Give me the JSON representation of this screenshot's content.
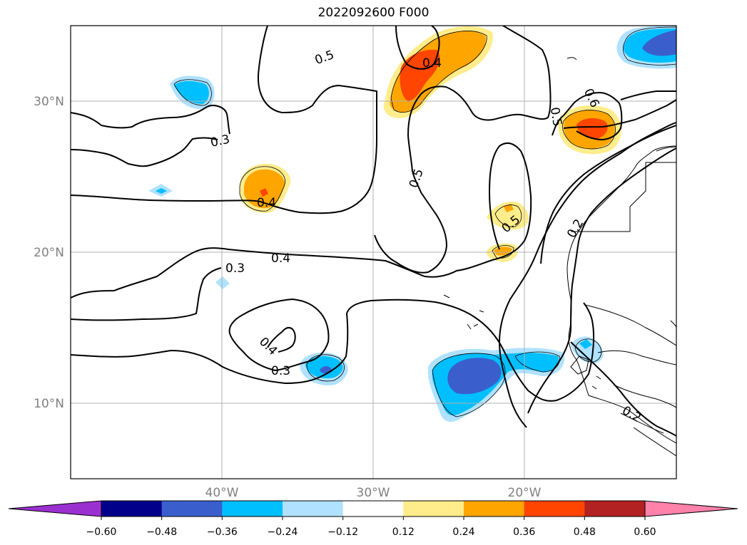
{
  "title": "2022092600 F000",
  "axes": {
    "lat_labels": [
      "30°N",
      "20°N",
      "10°N"
    ],
    "lon_labels": [
      "40°W",
      "30°W",
      "20°W"
    ]
  },
  "contour_labels": [
    "0.5",
    "0.4",
    "0.6",
    "0.5",
    "0.3",
    "0.4",
    "0.5",
    "0.5",
    "0.2",
    "0.4",
    "0.3",
    "0.4",
    "0.3",
    "0.2"
  ],
  "colorbar": {
    "tick_labels": [
      "−0.60",
      "−0.48",
      "−0.36",
      "−0.24",
      "−0.12",
      "0.12",
      "0.24",
      "0.36",
      "0.48",
      "0.60"
    ],
    "colors": [
      "#9b30d0",
      "#00008b",
      "#3a5fcd",
      "#00bfff",
      "#b0e2ff",
      "#ffffff",
      "#ffec8b",
      "#ffa500",
      "#ff4500",
      "#b22222",
      "#ff82ab",
      "#ff82ab"
    ]
  }
}
